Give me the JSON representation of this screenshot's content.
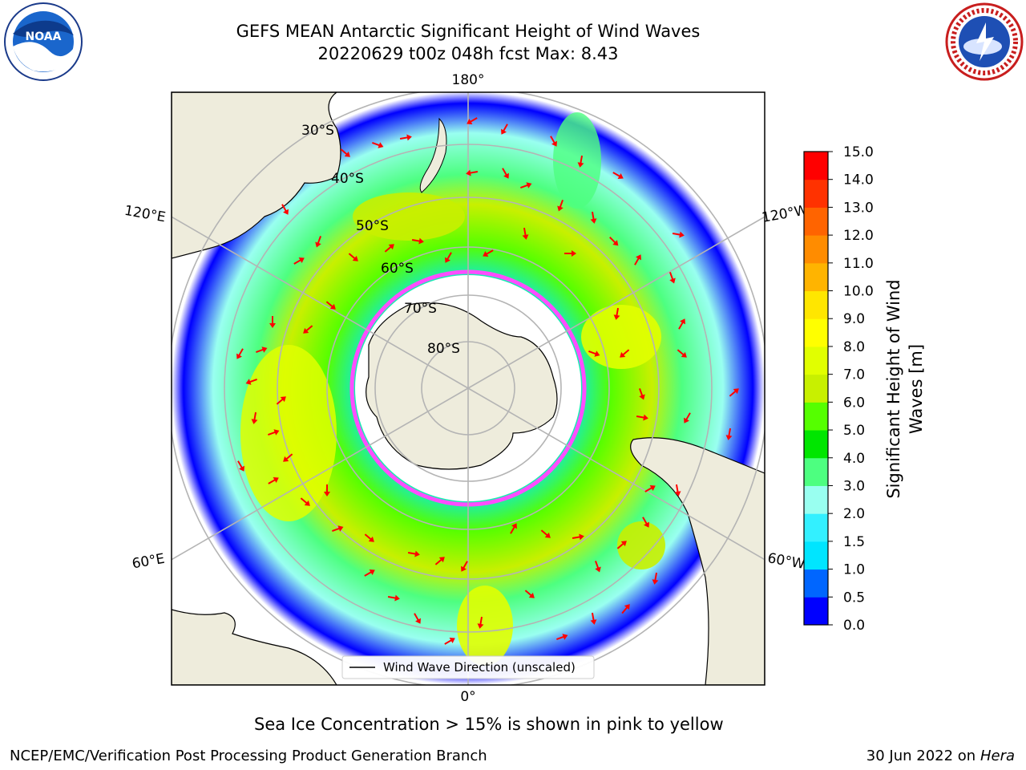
{
  "title": {
    "line1": "GEFS MEAN Antarctic Significant Height of Wind Waves",
    "line2": "20220629 t00z 048h fcst   Max: 8.43"
  },
  "map": {
    "longitude_labels": [
      "180°",
      "120°E",
      "120°W",
      "60°E",
      "60°W",
      "0°"
    ],
    "latitude_labels": [
      "30°S",
      "40°S",
      "50°S",
      "60°S",
      "70°S",
      "80°S"
    ],
    "legend_label": "Wind Wave Direction (unscaled)",
    "land_color": "#eeecdc",
    "vector_color": "#ff0000"
  },
  "colorbar": {
    "label_line1": "Significant Height of Wind",
    "label_line2": "Waves [m]",
    "ticks": [
      "0.0",
      "0.5",
      "1.0",
      "1.5",
      "2.0",
      "3.0",
      "4.0",
      "5.0",
      "6.0",
      "7.0",
      "8.0",
      "9.0",
      "10.0",
      "11.0",
      "12.0",
      "13.0",
      "14.0",
      "15.0"
    ],
    "colors": [
      "#0000ff",
      "#0066ff",
      "#00e5ff",
      "#33f0ff",
      "#99fff0",
      "#4dff80",
      "#00e600",
      "#55ff00",
      "#c8f000",
      "#e1ff00",
      "#ffff00",
      "#ffe600",
      "#ffb400",
      "#ff8c00",
      "#ff6400",
      "#ff3200",
      "#ff0000"
    ]
  },
  "note": "Sea Ice Concentration > 15% is shown in pink to yellow",
  "footer": {
    "left": "NCEP/EMC/Verification Post Processing Product Generation Branch",
    "right_prefix": "30 Jun 2022 on",
    "right_host": "Hera"
  },
  "logos": {
    "noaa_text": "NOAA",
    "nws_text": "NATIONAL WEATHER SERVICE"
  }
}
